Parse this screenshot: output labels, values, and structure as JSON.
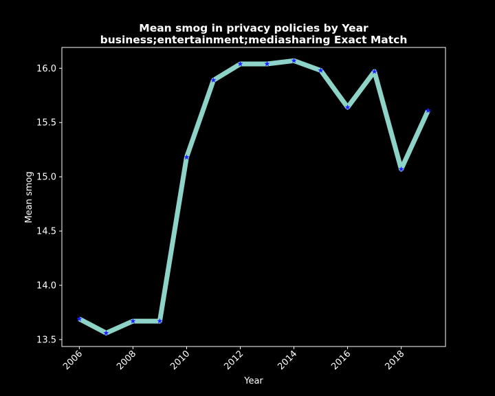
{
  "chart_data": {
    "type": "line",
    "title": "Mean smog in privacy policies by Year",
    "subtitle": "business;entertainment;mediasharing Exact Match",
    "xlabel": "Year",
    "ylabel": "Mean smog",
    "x": [
      2006,
      2007,
      2008,
      2009,
      2010,
      2011,
      2012,
      2013,
      2014,
      2015,
      2016,
      2017,
      2018,
      2019
    ],
    "series": [
      {
        "values": [
          13.69,
          13.56,
          13.67,
          13.67,
          15.18,
          15.89,
          16.04,
          16.04,
          16.07,
          15.98,
          15.64,
          15.97,
          15.07,
          15.61
        ]
      }
    ],
    "xlim": [
      2005.35,
      2019.65
    ],
    "ylim": [
      13.436,
      16.192
    ],
    "x_ticks": [
      "2006",
      "2008",
      "2010",
      "2012",
      "2014",
      "2016",
      "2018"
    ],
    "y_ticks": [
      "13.5",
      "14.0",
      "14.5",
      "15.0",
      "15.5",
      "16.0"
    ],
    "grid": false,
    "legend": "none",
    "colors": {
      "background": "#000000",
      "line": "#8dd3c7",
      "marker": "#1f1fff",
      "axes": "#ffffff"
    }
  }
}
